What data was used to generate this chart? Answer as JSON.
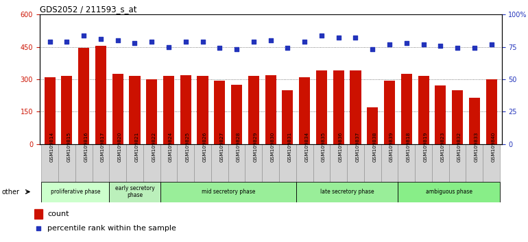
{
  "title": "GDS2052 / 211593_s_at",
  "samples": [
    "GSM109814",
    "GSM109815",
    "GSM109816",
    "GSM109817",
    "GSM109820",
    "GSM109821",
    "GSM109822",
    "GSM109824",
    "GSM109825",
    "GSM109826",
    "GSM109827",
    "GSM109828",
    "GSM109829",
    "GSM109830",
    "GSM109831",
    "GSM109834",
    "GSM109835",
    "GSM109836",
    "GSM109837",
    "GSM109838",
    "GSM109839",
    "GSM109818",
    "GSM109819",
    "GSM109823",
    "GSM109832",
    "GSM109833",
    "GSM109840"
  ],
  "counts": [
    310,
    315,
    445,
    455,
    325,
    315,
    300,
    315,
    320,
    315,
    295,
    275,
    315,
    320,
    250,
    310,
    340,
    340,
    340,
    170,
    295,
    325,
    315,
    270,
    250,
    215,
    300
  ],
  "percentiles": [
    79,
    79,
    84,
    81,
    80,
    78,
    79,
    75,
    79,
    79,
    74,
    73,
    79,
    80,
    74,
    79,
    84,
    82,
    82,
    73,
    77,
    78,
    77,
    76,
    74,
    74,
    77
  ],
  "bar_color": "#cc1100",
  "dot_color": "#2233bb",
  "ylim_left": [
    0,
    600
  ],
  "ylim_right": [
    0,
    100
  ],
  "yticks_left": [
    0,
    150,
    300,
    450,
    600
  ],
  "yticks_right": [
    0,
    25,
    50,
    75,
    100
  ],
  "phase_groups": [
    {
      "label": "proliferative phase",
      "start": 0,
      "end": 4,
      "color": "#ccffcc"
    },
    {
      "label": "early secretory\nphase",
      "start": 4,
      "end": 7,
      "color": "#bbf0bb"
    },
    {
      "label": "mid secretory phase",
      "start": 7,
      "end": 15,
      "color": "#99ee99"
    },
    {
      "label": "late secretory phase",
      "start": 15,
      "end": 21,
      "color": "#99ee99"
    },
    {
      "label": "ambiguous phase",
      "start": 21,
      "end": 27,
      "color": "#88ee88"
    }
  ],
  "other_label": "other",
  "legend_count_label": "count",
  "legend_pct_label": "percentile rank within the sample",
  "xtick_bg": "#d4d4d4",
  "plot_bg": "#ffffff"
}
